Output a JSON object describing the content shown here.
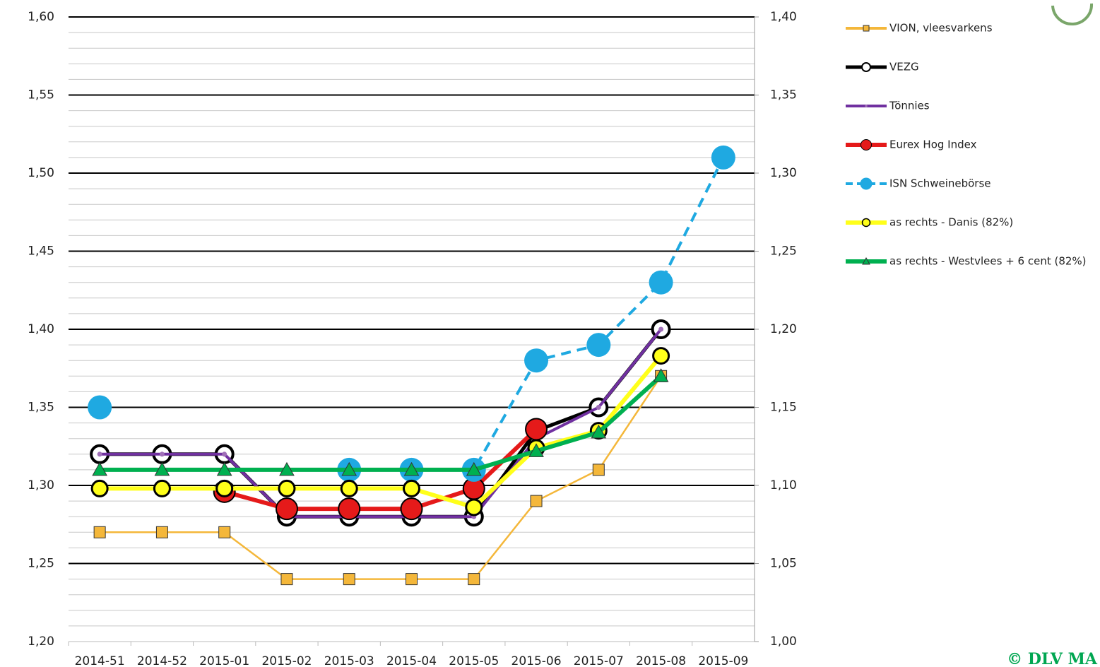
{
  "chart_data": {
    "type": "line",
    "categories": [
      "2014-51",
      "2014-52",
      "2015-01",
      "2015-02",
      "2015-03",
      "2015-04",
      "2015-05",
      "2015-06",
      "2015-07",
      "2015-08",
      "2015-09"
    ],
    "ylim": [
      1.2,
      1.6
    ],
    "yticks": [
      {
        "value": 1.2,
        "label": "1,20"
      },
      {
        "value": 1.25,
        "label": "1,25"
      },
      {
        "value": 1.3,
        "label": "1,30"
      },
      {
        "value": 1.35,
        "label": "1,35"
      },
      {
        "value": 1.4,
        "label": "1,40"
      },
      {
        "value": 1.45,
        "label": "1,45"
      },
      {
        "value": 1.5,
        "label": "1,50"
      },
      {
        "value": 1.55,
        "label": "1,55"
      },
      {
        "value": 1.6,
        "label": "1,60"
      }
    ],
    "yminorticks": [
      1.21,
      1.22,
      1.23,
      1.24,
      1.26,
      1.27,
      1.28,
      1.29,
      1.31,
      1.32,
      1.33,
      1.34,
      1.36,
      1.37,
      1.38,
      1.39,
      1.41,
      1.42,
      1.43,
      1.44,
      1.46,
      1.47,
      1.48,
      1.49,
      1.51,
      1.52,
      1.53,
      1.54,
      1.56,
      1.57,
      1.58,
      1.59
    ],
    "y2lim": [
      1.0,
      1.4
    ],
    "y2ticks": [
      {
        "value": 1.0,
        "label": "1,00"
      },
      {
        "value": 1.05,
        "label": "1,05"
      },
      {
        "value": 1.1,
        "label": "1,10"
      },
      {
        "value": 1.15,
        "label": "1,15"
      },
      {
        "value": 1.2,
        "label": "1,20"
      },
      {
        "value": 1.25,
        "label": "1,25"
      },
      {
        "value": 1.3,
        "label": "1,30"
      },
      {
        "value": 1.35,
        "label": "1,35"
      },
      {
        "value": 1.4,
        "label": "1,40"
      }
    ],
    "grid": true,
    "legend": "right",
    "series": [
      {
        "name": "VION, vleesvarkens",
        "color": "#f4b73a",
        "marker": "square",
        "values": [
          1.27,
          1.27,
          1.27,
          1.24,
          1.24,
          1.24,
          1.24,
          1.29,
          1.31,
          1.37,
          null
        ]
      },
      {
        "name": "VEZG",
        "color": "#000000",
        "marker": "circle",
        "values": [
          1.32,
          1.32,
          1.32,
          1.28,
          1.28,
          1.28,
          1.28,
          1.335,
          1.35,
          1.4,
          null
        ]
      },
      {
        "name": "Tönnies",
        "color": "#7030a0",
        "marker": "dot",
        "values": [
          1.32,
          1.32,
          1.32,
          1.28,
          1.28,
          1.28,
          1.28,
          1.33,
          1.35,
          1.4,
          null
        ]
      },
      {
        "name": "Eurex Hog Index",
        "color": "#e51a1a",
        "marker": "circle",
        "values": [
          null,
          null,
          1.296,
          1.285,
          1.285,
          1.285,
          1.298,
          1.336,
          null,
          null,
          null
        ]
      },
      {
        "name": "ISN Schweinebörse",
        "color": "#1fa9e1",
        "marker": "disc",
        "dashed": true,
        "values": [
          1.35,
          null,
          null,
          null,
          1.31,
          1.31,
          1.31,
          1.38,
          1.39,
          1.43,
          1.51
        ]
      },
      {
        "name": "as rechts - Danis (82%)",
        "color": "#ffff1a",
        "marker": "circle",
        "axis": "y2",
        "values": [
          1.098,
          1.098,
          1.098,
          1.098,
          1.098,
          1.098,
          1.086,
          1.124,
          1.135,
          1.183,
          null
        ]
      },
      {
        "name": "as rechts - Westvlees + 6 cent (82%)",
        "color": "#00b050",
        "marker": "triangle",
        "axis": "y2",
        "values": [
          1.11,
          1.11,
          1.11,
          1.11,
          1.11,
          1.11,
          1.11,
          1.122,
          1.134,
          1.17,
          null
        ]
      }
    ],
    "copyright": "© DLV MA"
  }
}
